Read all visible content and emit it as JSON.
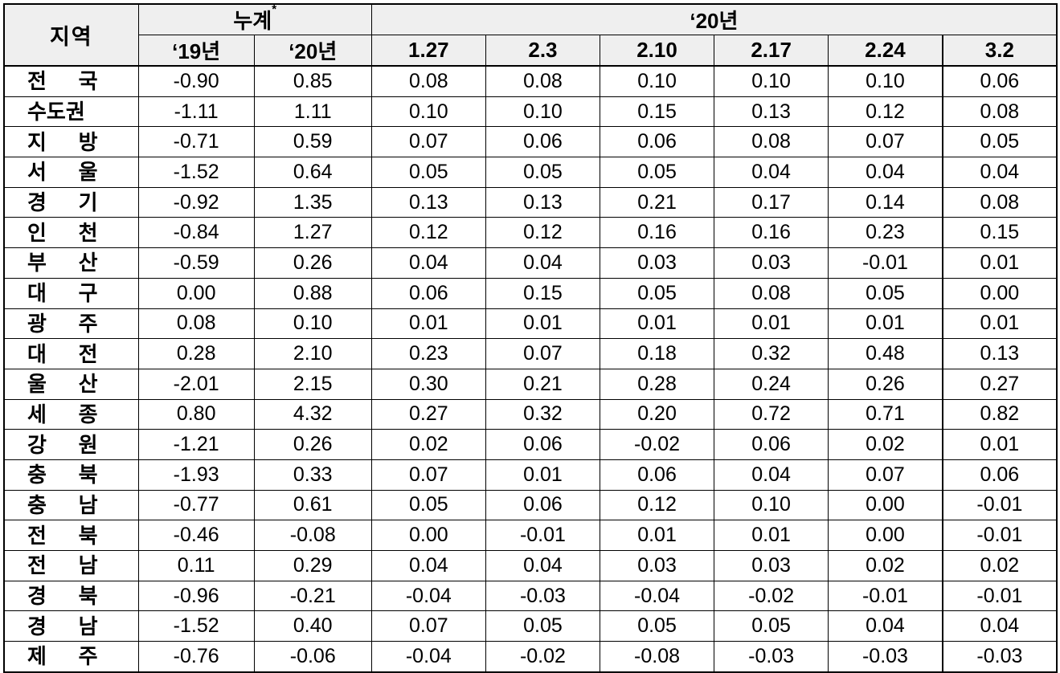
{
  "header": {
    "region": "지역",
    "cumulative": "누계",
    "cumulative_mark": "*",
    "year_group": "‘20년",
    "sub": [
      "‘19년",
      "‘20년",
      "1.27",
      "2.3",
      "2.10",
      "2.17",
      "2.24",
      "3.2"
    ]
  },
  "rows": [
    {
      "region": "전 국",
      "v": [
        "-0.90",
        "0.85",
        "0.08",
        "0.08",
        "0.10",
        "0.10",
        "0.10",
        "0.06"
      ]
    },
    {
      "region": "수도권",
      "v": [
        "-1.11",
        "1.11",
        "0.10",
        "0.10",
        "0.15",
        "0.13",
        "0.12",
        "0.08"
      ]
    },
    {
      "region": "지 방",
      "v": [
        "-0.71",
        "0.59",
        "0.07",
        "0.06",
        "0.06",
        "0.08",
        "0.07",
        "0.05"
      ]
    },
    {
      "region": "서 울",
      "v": [
        "-1.52",
        "0.64",
        "0.05",
        "0.05",
        "0.05",
        "0.04",
        "0.04",
        "0.04"
      ]
    },
    {
      "region": "경 기",
      "v": [
        "-0.92",
        "1.35",
        "0.13",
        "0.13",
        "0.21",
        "0.17",
        "0.14",
        "0.08"
      ]
    },
    {
      "region": "인 천",
      "v": [
        "-0.84",
        "1.27",
        "0.12",
        "0.12",
        "0.16",
        "0.16",
        "0.23",
        "0.15"
      ]
    },
    {
      "region": "부 산",
      "v": [
        "-0.59",
        "0.26",
        "0.04",
        "0.04",
        "0.03",
        "0.03",
        "-0.01",
        "0.01"
      ]
    },
    {
      "region": "대 구",
      "v": [
        "0.00",
        "0.88",
        "0.06",
        "0.15",
        "0.05",
        "0.08",
        "0.05",
        "0.00"
      ]
    },
    {
      "region": "광 주",
      "v": [
        "0.08",
        "0.10",
        "0.01",
        "0.01",
        "0.01",
        "0.01",
        "0.01",
        "0.01"
      ]
    },
    {
      "region": "대 전",
      "v": [
        "0.28",
        "2.10",
        "0.23",
        "0.07",
        "0.18",
        "0.32",
        "0.48",
        "0.13"
      ]
    },
    {
      "region": "울 산",
      "v": [
        "-2.01",
        "2.15",
        "0.30",
        "0.21",
        "0.28",
        "0.24",
        "0.26",
        "0.27"
      ]
    },
    {
      "region": "세 종",
      "v": [
        "0.80",
        "4.32",
        "0.27",
        "0.32",
        "0.20",
        "0.72",
        "0.71",
        "0.82"
      ]
    },
    {
      "region": "강 원",
      "v": [
        "-1.21",
        "0.26",
        "0.02",
        "0.06",
        "-0.02",
        "0.06",
        "0.02",
        "0.01"
      ]
    },
    {
      "region": "충 북",
      "v": [
        "-1.93",
        "0.33",
        "0.07",
        "0.01",
        "0.06",
        "0.04",
        "0.07",
        "0.06"
      ]
    },
    {
      "region": "충 남",
      "v": [
        "-0.77",
        "0.61",
        "0.05",
        "0.06",
        "0.12",
        "0.10",
        "0.00",
        "-0.01"
      ]
    },
    {
      "region": "전 북",
      "v": [
        "-0.46",
        "-0.08",
        "0.00",
        "-0.01",
        "0.01",
        "0.01",
        "0.00",
        "-0.01"
      ]
    },
    {
      "region": "전 남",
      "v": [
        "0.11",
        "0.29",
        "0.04",
        "0.04",
        "0.03",
        "0.03",
        "0.02",
        "0.02"
      ]
    },
    {
      "region": "경 북",
      "v": [
        "-0.96",
        "-0.21",
        "-0.04",
        "-0.03",
        "-0.04",
        "-0.02",
        "-0.01",
        "-0.01"
      ]
    },
    {
      "region": "경 남",
      "v": [
        "-1.52",
        "0.40",
        "0.07",
        "0.05",
        "0.05",
        "0.05",
        "0.04",
        "0.04"
      ]
    },
    {
      "region": "제 주",
      "v": [
        "-0.76",
        "-0.06",
        "-0.04",
        "-0.02",
        "-0.08",
        "-0.03",
        "-0.03",
        "-0.03"
      ]
    }
  ]
}
